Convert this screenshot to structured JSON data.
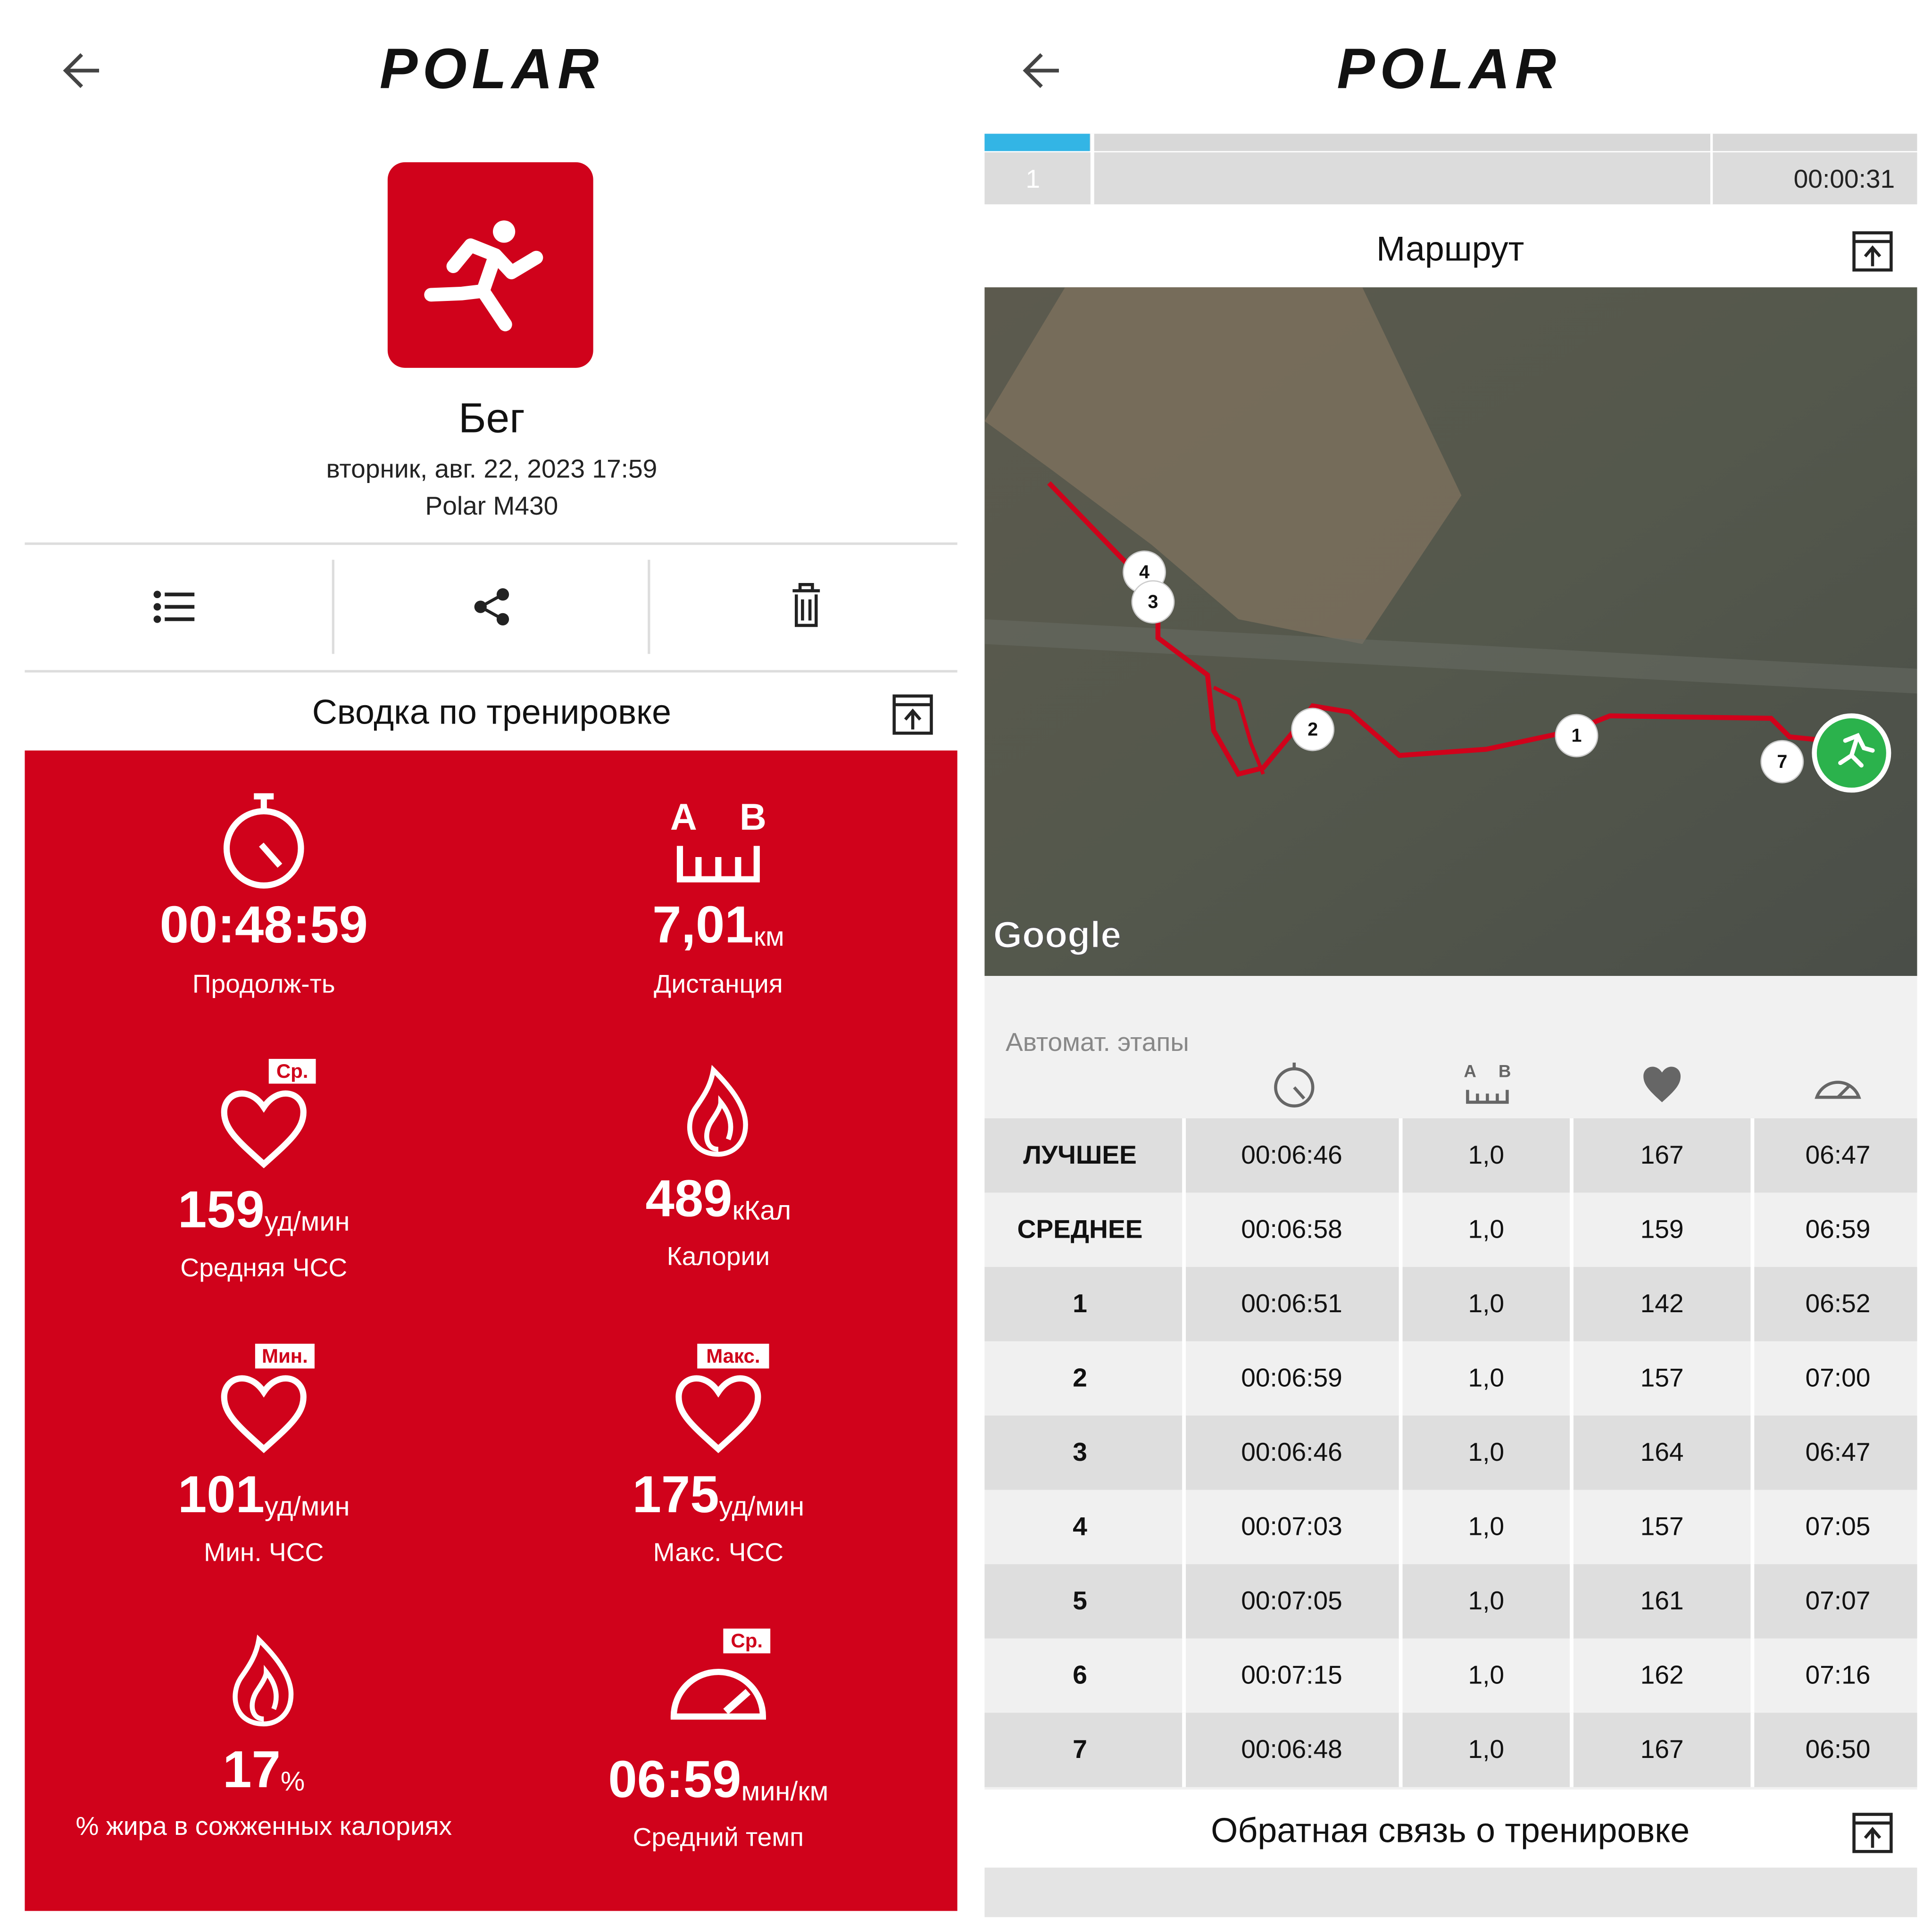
{
  "left": {
    "logo": "POLAR",
    "title": "Бег",
    "date": "вторник, авг. 22, 2023 17:59",
    "device": "Polar M430",
    "summary_title": "Сводка по тренировке",
    "metrics": [
      {
        "value": "00:48:59",
        "label": "Продолж-ть"
      },
      {
        "value": "7,01",
        "unit": "км",
        "label": "Дистанция",
        "marks": [
          "A",
          "B"
        ]
      },
      {
        "value": "159",
        "unit": "уд/мин",
        "label": "Средняя ЧСС",
        "badge": "Ср."
      },
      {
        "value": "489",
        "unit": "кКал",
        "label": "Калории"
      },
      {
        "value": "101",
        "unit": "уд/мин",
        "label": "Мин. ЧСС",
        "badge": "Мин."
      },
      {
        "value": "175",
        "unit": "уд/мин",
        "label": "Макс. ЧСС",
        "badge": "Макс."
      },
      {
        "value": "17",
        "unit": "%",
        "label": "% жира в сожженных калориях"
      },
      {
        "value": "06:59",
        "unit": "мин/км",
        "label": "Средний темп",
        "badge": "Ср."
      }
    ]
  },
  "right": {
    "logo": "POLAR",
    "top_row": {
      "lap": "1",
      "time": "00:00:31"
    },
    "route_title": "Маршрут",
    "map_markers": [
      "4",
      "3",
      "2",
      "1",
      "7"
    ],
    "map_credit": "Google",
    "laps_title": "Автомат. этапы",
    "header_marks": [
      "A",
      "B"
    ],
    "rows": [
      [
        "ЛУЧШЕЕ",
        "00:06:46",
        "1,0",
        "167",
        "06:47"
      ],
      [
        "СРЕДНЕЕ",
        "00:06:58",
        "1,0",
        "159",
        "06:59"
      ],
      [
        "1",
        "00:06:51",
        "1,0",
        "142",
        "06:52"
      ],
      [
        "2",
        "00:06:59",
        "1,0",
        "157",
        "07:00"
      ],
      [
        "3",
        "00:06:46",
        "1,0",
        "164",
        "06:47"
      ],
      [
        "4",
        "00:07:03",
        "1,0",
        "157",
        "07:05"
      ],
      [
        "5",
        "00:07:05",
        "1,0",
        "161",
        "07:07"
      ],
      [
        "6",
        "00:07:15",
        "1,0",
        "162",
        "07:16"
      ],
      [
        "7",
        "00:06:48",
        "1,0",
        "167",
        "06:50"
      ]
    ],
    "feedback_title": "Обратная связь о тренировке"
  }
}
